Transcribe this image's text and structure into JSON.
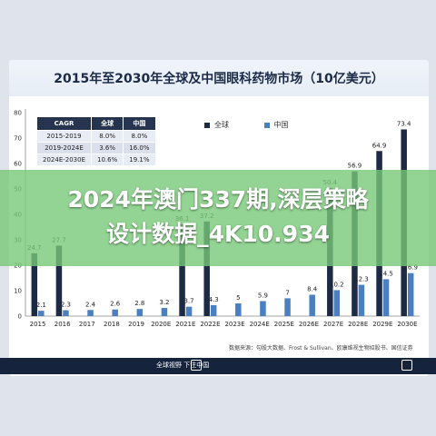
{
  "chart_data": {
    "type": "bar",
    "title": "2015年至2030年全球及中国眼科药物市场（10亿美元）",
    "categories": [
      "2015",
      "2016",
      "2017",
      "2018",
      "2019",
      "2020E",
      "2021E",
      "2022E",
      "2023E",
      "2024E",
      "2025E",
      "2026E",
      "2027E",
      "2028E",
      "2029E",
      "2030E"
    ],
    "series": [
      {
        "name": "全球",
        "color": "#1d2a45",
        "values": [
          24.7,
          27.7,
          null,
          null,
          null,
          null,
          36.1,
          37.2,
          null,
          null,
          null,
          null,
          50.4,
          56.9,
          64.9,
          73.4
        ]
      },
      {
        "name": "中国",
        "color": "#4a7fc1",
        "values": [
          2.1,
          2.3,
          2.4,
          2.6,
          2.8,
          3.2,
          3.7,
          4.3,
          5.0,
          5.9,
          7.0,
          8.4,
          10.2,
          12.3,
          14.5,
          16.9
        ]
      }
    ],
    "ylim": [
      0,
      80
    ],
    "yticks": [
      0,
      10,
      20,
      30,
      40,
      50,
      60,
      70,
      80
    ],
    "grid": false,
    "legend": "top"
  },
  "cagr_table": {
    "headers": [
      "CAGR",
      "全球",
      "中国"
    ],
    "rows": [
      [
        "2015-2019",
        "8.0%",
        "8.0%"
      ],
      [
        "2019-2024E",
        "3.6%",
        "16.0%"
      ],
      [
        "2024E-2030E",
        "10.6%",
        "19.1%"
      ]
    ]
  },
  "source": "数据来源：勾股大数据、Frost & Sullivan、欧康维视生物招股书、国信证券",
  "footer": {
    "center": "全球视野 下注中国"
  },
  "overlay": {
    "line1": "2024年澳门337期,深层策略",
    "line2": "设计数据_4K10.934"
  }
}
